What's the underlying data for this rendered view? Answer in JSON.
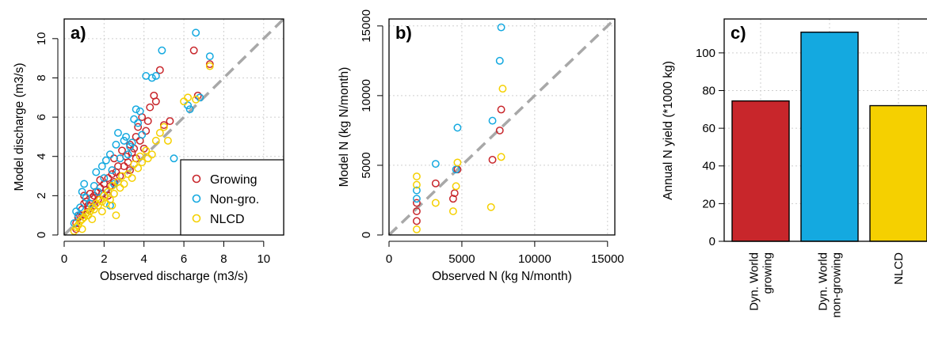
{
  "colors": {
    "growing": "#c8262b",
    "nongrowing": "#14a9e0",
    "nlcd": "#f5d000",
    "one_to_one": "#a8a8a8",
    "grid": "#cfcfcf"
  },
  "chart_data": [
    {
      "type": "scatter",
      "panel": "a)",
      "xlabel": "Observed discharge (m3/s)",
      "ylabel": "Model discharge (m3/s)",
      "xlim": [
        0,
        11
      ],
      "ylim": [
        0,
        11
      ],
      "xticks": [
        0,
        2,
        4,
        6,
        8,
        10
      ],
      "yticks": [
        0,
        2,
        4,
        6,
        8,
        10
      ],
      "grid": true,
      "one_to_one_line": true,
      "legend": {
        "placement": "bottom-right",
        "entries": [
          "Growing",
          "Non-gro.",
          "NLCD"
        ]
      },
      "series": [
        {
          "name": "Growing",
          "color_key": "growing",
          "points": [
            [
              0.6,
              0.3
            ],
            [
              0.6,
              0.6
            ],
            [
              0.7,
              0.9
            ],
            [
              0.8,
              1.0
            ],
            [
              0.9,
              1.3
            ],
            [
              1.0,
              1.6
            ],
            [
              1.0,
              2.0
            ],
            [
              1.1,
              1.7
            ],
            [
              1.2,
              1.3
            ],
            [
              1.3,
              2.1
            ],
            [
              1.4,
              1.9
            ],
            [
              1.5,
              1.5
            ],
            [
              1.6,
              2.2
            ],
            [
              1.7,
              1.8
            ],
            [
              1.8,
              2.4
            ],
            [
              1.9,
              2.1
            ],
            [
              2.0,
              2.6
            ],
            [
              2.1,
              2.3
            ],
            [
              2.2,
              2.9
            ],
            [
              2.3,
              2.5
            ],
            [
              2.4,
              3.1
            ],
            [
              2.5,
              2.7
            ],
            [
              2.6,
              3.2
            ],
            [
              2.7,
              3.5
            ],
            [
              2.8,
              3.0
            ],
            [
              3.0,
              3.5
            ],
            [
              3.1,
              4.0
            ],
            [
              3.2,
              3.7
            ],
            [
              3.3,
              3.3
            ],
            [
              3.4,
              4.2
            ],
            [
              3.5,
              4.4
            ],
            [
              3.6,
              5.0
            ],
            [
              3.7,
              5.5
            ],
            [
              3.8,
              4.8
            ],
            [
              3.9,
              6.0
            ],
            [
              4.0,
              4.4
            ],
            [
              4.1,
              5.3
            ],
            [
              4.3,
              6.5
            ],
            [
              4.5,
              7.1
            ],
            [
              4.6,
              6.8
            ],
            [
              4.8,
              8.4
            ],
            [
              5.0,
              5.6
            ],
            [
              5.3,
              5.8
            ],
            [
              6.5,
              9.4
            ],
            [
              6.7,
              7.1
            ],
            [
              7.3,
              8.7
            ],
            [
              0.9,
              1.0
            ],
            [
              1.2,
              1.5
            ],
            [
              1.5,
              2.0
            ],
            [
              1.8,
              2.8
            ],
            [
              2.2,
              2.0
            ],
            [
              2.5,
              3.9
            ],
            [
              2.9,
              4.3
            ],
            [
              3.3,
              4.6
            ],
            [
              3.6,
              3.9
            ],
            [
              4.2,
              5.8
            ]
          ]
        },
        {
          "name": "Non-gro.",
          "color_key": "nongrowing",
          "points": [
            [
              0.5,
              0.6
            ],
            [
              0.6,
              1.2
            ],
            [
              0.7,
              1.0
            ],
            [
              0.8,
              1.4
            ],
            [
              0.9,
              2.2
            ],
            [
              1.0,
              2.6
            ],
            [
              1.2,
              1.0
            ],
            [
              1.3,
              1.6
            ],
            [
              1.5,
              2.5
            ],
            [
              1.6,
              3.2
            ],
            [
              1.7,
              2.2
            ],
            [
              1.9,
              3.5
            ],
            [
              2.0,
              2.9
            ],
            [
              2.1,
              3.8
            ],
            [
              2.2,
              2.2
            ],
            [
              2.3,
              4.1
            ],
            [
              2.4,
              3.3
            ],
            [
              2.5,
              2.6
            ],
            [
              2.6,
              4.6
            ],
            [
              2.7,
              5.2
            ],
            [
              2.8,
              3.9
            ],
            [
              3.0,
              4.8
            ],
            [
              3.1,
              5.0
            ],
            [
              3.2,
              4.1
            ],
            [
              3.3,
              4.5
            ],
            [
              3.5,
              5.9
            ],
            [
              3.6,
              6.4
            ],
            [
              3.7,
              5.7
            ],
            [
              3.8,
              6.3
            ],
            [
              3.9,
              5.1
            ],
            [
              4.1,
              8.1
            ],
            [
              4.4,
              8.0
            ],
            [
              4.6,
              8.1
            ],
            [
              4.9,
              9.4
            ],
            [
              5.5,
              3.9
            ],
            [
              6.2,
              6.6
            ],
            [
              6.3,
              6.4
            ],
            [
              6.6,
              10.3
            ],
            [
              6.8,
              7.0
            ],
            [
              7.3,
              9.1
            ],
            [
              2.3,
              1.5
            ],
            [
              1.1,
              1.9
            ],
            [
              3.4,
              4.7
            ]
          ]
        },
        {
          "name": "NLCD",
          "color_key": "nlcd",
          "points": [
            [
              0.5,
              0.2
            ],
            [
              0.6,
              0.4
            ],
            [
              0.7,
              0.5
            ],
            [
              0.8,
              0.7
            ],
            [
              0.9,
              0.8
            ],
            [
              1.0,
              0.9
            ],
            [
              1.1,
              1.1
            ],
            [
              1.2,
              1.0
            ],
            [
              1.3,
              1.2
            ],
            [
              1.4,
              1.4
            ],
            [
              1.5,
              1.3
            ],
            [
              1.6,
              1.6
            ],
            [
              1.7,
              1.5
            ],
            [
              1.8,
              1.8
            ],
            [
              1.9,
              1.7
            ],
            [
              2.0,
              2.0
            ],
            [
              2.1,
              1.6
            ],
            [
              2.2,
              2.2
            ],
            [
              2.3,
              1.8
            ],
            [
              2.4,
              2.5
            ],
            [
              2.5,
              2.1
            ],
            [
              2.6,
              1.0
            ],
            [
              2.7,
              2.7
            ],
            [
              2.8,
              2.4
            ],
            [
              2.9,
              3.0
            ],
            [
              3.0,
              2.6
            ],
            [
              3.2,
              3.1
            ],
            [
              3.4,
              2.9
            ],
            [
              3.5,
              3.6
            ],
            [
              3.7,
              3.4
            ],
            [
              3.8,
              4.0
            ],
            [
              3.9,
              3.7
            ],
            [
              4.1,
              4.3
            ],
            [
              4.2,
              3.9
            ],
            [
              4.4,
              4.1
            ],
            [
              4.6,
              4.8
            ],
            [
              4.8,
              5.2
            ],
            [
              5.0,
              5.5
            ],
            [
              5.2,
              4.8
            ],
            [
              6.0,
              6.8
            ],
            [
              6.2,
              7.0
            ],
            [
              6.6,
              6.9
            ],
            [
              7.3,
              8.6
            ],
            [
              0.9,
              0.3
            ],
            [
              1.4,
              0.8
            ],
            [
              1.9,
              1.2
            ],
            [
              2.4,
              1.5
            ]
          ]
        }
      ]
    },
    {
      "type": "scatter",
      "panel": "b)",
      "xlabel": "Observed N (kg N/month)",
      "ylabel": "Model N (kg N/month)",
      "xlim": [
        0,
        15500
      ],
      "ylim": [
        0,
        15500
      ],
      "xticks": [
        0,
        5000,
        10000,
        15000
      ],
      "yticks": [
        0,
        5000,
        10000,
        15000
      ],
      "grid": true,
      "one_to_one_line": true,
      "series": [
        {
          "name": "Growing",
          "color_key": "growing",
          "points": [
            [
              1900,
              2300
            ],
            [
              1900,
              1700
            ],
            [
              1900,
              1000
            ],
            [
              3200,
              3700
            ],
            [
              4400,
              2600
            ],
            [
              4500,
              3000
            ],
            [
              4700,
              4700
            ],
            [
              7100,
              5400
            ],
            [
              7600,
              7500
            ],
            [
              7700,
              9000
            ]
          ]
        },
        {
          "name": "Non-gro.",
          "color_key": "nongrowing",
          "points": [
            [
              1900,
              3200
            ],
            [
              1900,
              2600
            ],
            [
              3200,
              5100
            ],
            [
              4600,
              4700
            ],
            [
              4700,
              7700
            ],
            [
              7100,
              8200
            ],
            [
              7600,
              12500
            ],
            [
              7700,
              14900
            ]
          ]
        },
        {
          "name": "NLCD",
          "color_key": "nlcd",
          "points": [
            [
              1900,
              4200
            ],
            [
              1900,
              3600
            ],
            [
              1900,
              400
            ],
            [
              3200,
              2300
            ],
            [
              4400,
              1700
            ],
            [
              4600,
              3500
            ],
            [
              4700,
              5200
            ],
            [
              7000,
              2000
            ],
            [
              7700,
              5600
            ],
            [
              7800,
              10500
            ]
          ]
        }
      ]
    },
    {
      "type": "bar",
      "panel": "c)",
      "ylabel": "Annual N yield (*1000 kg)",
      "categories": [
        "Dyn. World\ngrowing",
        "Dyn. World\nnon-growing",
        "NLCD"
      ],
      "values": [
        74.5,
        111,
        72
      ],
      "color_keys": [
        "growing",
        "nongrowing",
        "nlcd"
      ],
      "ylim": [
        0,
        118
      ],
      "yticks": [
        0,
        20,
        40,
        60,
        80,
        100
      ],
      "grid": true
    }
  ]
}
